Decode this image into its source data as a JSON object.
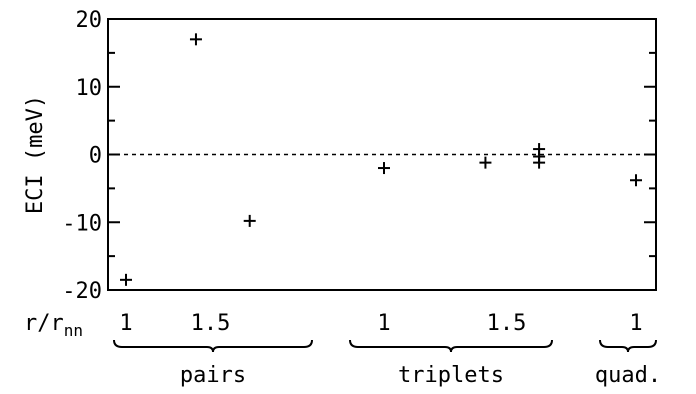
{
  "chart_data": {
    "type": "scatter",
    "title": "",
    "ylabel": "ECI (meV)",
    "xlabel": "r/r",
    "xlabel_subscript": "nn",
    "ylim": [
      -20,
      20
    ],
    "yticks": [
      20,
      10,
      0,
      -10,
      -20
    ],
    "grid": false,
    "reference_line": {
      "y": 0,
      "style": "dashed"
    },
    "groups": [
      {
        "name": "pairs",
        "tick_labels": [
          "1",
          "1.5"
        ],
        "points": [
          {
            "x": 1.0,
            "y": -18.5
          },
          {
            "x": 1.414,
            "y": 17
          },
          {
            "x": 1.732,
            "y": -9.8
          }
        ]
      },
      {
        "name": "triplets",
        "tick_labels": [
          "1",
          "1.5"
        ],
        "points": [
          {
            "x": 1.0,
            "y": -2
          },
          {
            "x": 1.414,
            "y": -1.2
          },
          {
            "x": 1.633,
            "y": 0.8
          },
          {
            "x": 1.633,
            "y": -0.3
          },
          {
            "x": 1.633,
            "y": -1.2
          }
        ]
      },
      {
        "name": "quad.",
        "tick_labels": [
          "1"
        ],
        "points": [
          {
            "x": 1.0,
            "y": -3.8
          }
        ]
      }
    ]
  }
}
